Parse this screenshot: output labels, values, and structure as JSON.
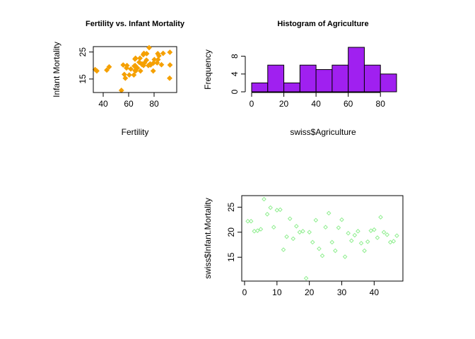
{
  "chart_data": [
    {
      "type": "scatter",
      "title": "Fertility vs. Infant Mortality",
      "xlabel": "Fertility",
      "ylabel": "Infant Mortality",
      "xlim": [
        35,
        95
      ],
      "ylim": [
        10,
        27
      ],
      "xticks": [
        40,
        60,
        80
      ],
      "yticks": [
        15,
        25
      ],
      "color": "#F5A000",
      "marker": "filled-diamond",
      "points": [
        [
          80.2,
          22.2
        ],
        [
          83.1,
          22.2
        ],
        [
          92.5,
          20.2
        ],
        [
          85.8,
          20.3
        ],
        [
          76.9,
          20.6
        ],
        [
          76.1,
          26.6
        ],
        [
          83.8,
          23.6
        ],
        [
          92.4,
          24.9
        ],
        [
          82.4,
          21.0
        ],
        [
          82.9,
          24.4
        ],
        [
          87.1,
          24.5
        ],
        [
          64.1,
          16.5
        ],
        [
          66.9,
          19.1
        ],
        [
          68.9,
          22.7
        ],
        [
          61.7,
          18.7
        ],
        [
          68.3,
          21.2
        ],
        [
          71.7,
          20.0
        ],
        [
          55.7,
          20.2
        ],
        [
          54.3,
          10.8
        ],
        [
          65.1,
          20.0
        ],
        [
          65.5,
          18.0
        ],
        [
          65.0,
          22.4
        ],
        [
          56.6,
          16.7
        ],
        [
          57.4,
          15.3
        ],
        [
          72.5,
          21.0
        ],
        [
          74.2,
          24.4
        ],
        [
          72.0,
          24.5
        ],
        [
          60.5,
          16.5
        ],
        [
          58.3,
          19.1
        ],
        [
          65.4,
          22.7
        ],
        [
          75.5,
          20.0
        ],
        [
          69.3,
          18.0
        ],
        [
          77.3,
          20.2
        ],
        [
          70.5,
          20.6
        ],
        [
          79.4,
          20.9
        ],
        [
          65.0,
          18.1
        ],
        [
          92.2,
          15.3
        ],
        [
          79.3,
          18.0
        ],
        [
          70.4,
          20.4
        ],
        [
          44.7,
          19.5
        ],
        [
          35.0,
          18.0
        ],
        [
          42.8,
          18.3
        ],
        [
          33.7,
          18.5
        ],
        [
          64.4,
          19.8
        ],
        [
          71.5,
          24.0
        ],
        [
          58.7,
          20.0
        ],
        [
          74.0,
          22.0
        ]
      ]
    },
    {
      "type": "bar",
      "title": "Histogram of Agriculture",
      "xlabel": "swiss$Agriculture",
      "ylabel": "Frequency",
      "xlim": [
        0,
        90
      ],
      "ylim": [
        0,
        10
      ],
      "xticks": [
        0,
        20,
        40,
        60,
        80
      ],
      "yticks": [
        0,
        4,
        8
      ],
      "color": "#A020F0",
      "border_color": "#000000",
      "bin_edges": [
        0,
        10,
        20,
        30,
        40,
        50,
        60,
        70,
        80,
        90
      ],
      "values": [
        2,
        6,
        2,
        6,
        5,
        6,
        10,
        6,
        4
      ]
    },
    {
      "type": "scatter",
      "title": "",
      "xlabel": "",
      "ylabel": "swiss$Infant.Mortality",
      "xlim": [
        0,
        48
      ],
      "ylim": [
        10.8,
        26.6
      ],
      "xticks": [
        0,
        10,
        20,
        30,
        40
      ],
      "yticks": [
        15,
        20,
        25
      ],
      "color": "#90EE90",
      "marker": "open-diamond",
      "points": [
        [
          1,
          22.2
        ],
        [
          2,
          22.2
        ],
        [
          3,
          20.2
        ],
        [
          4,
          20.3
        ],
        [
          5,
          20.6
        ],
        [
          6,
          26.6
        ],
        [
          7,
          23.6
        ],
        [
          8,
          24.9
        ],
        [
          9,
          21.0
        ],
        [
          10,
          24.4
        ],
        [
          11,
          24.5
        ],
        [
          12,
          16.5
        ],
        [
          13,
          19.1
        ],
        [
          14,
          22.7
        ],
        [
          15,
          18.7
        ],
        [
          16,
          21.2
        ],
        [
          17,
          20.0
        ],
        [
          18,
          20.2
        ],
        [
          19,
          10.8
        ],
        [
          20,
          20.0
        ],
        [
          21,
          18.0
        ],
        [
          22,
          22.4
        ],
        [
          23,
          16.7
        ],
        [
          24,
          15.3
        ],
        [
          25,
          21.0
        ],
        [
          26,
          23.8
        ],
        [
          27,
          18.0
        ],
        [
          28,
          16.3
        ],
        [
          29,
          20.9
        ],
        [
          30,
          22.5
        ],
        [
          31,
          15.1
        ],
        [
          32,
          19.8
        ],
        [
          33,
          18.3
        ],
        [
          34,
          19.4
        ],
        [
          35,
          20.2
        ],
        [
          36,
          17.8
        ],
        [
          37,
          16.3
        ],
        [
          38,
          18.1
        ],
        [
          39,
          20.3
        ],
        [
          40,
          20.5
        ],
        [
          41,
          18.9
        ],
        [
          42,
          23.0
        ],
        [
          43,
          20.0
        ],
        [
          44,
          19.5
        ],
        [
          45,
          18.0
        ],
        [
          46,
          18.2
        ],
        [
          47,
          19.3
        ]
      ]
    }
  ]
}
